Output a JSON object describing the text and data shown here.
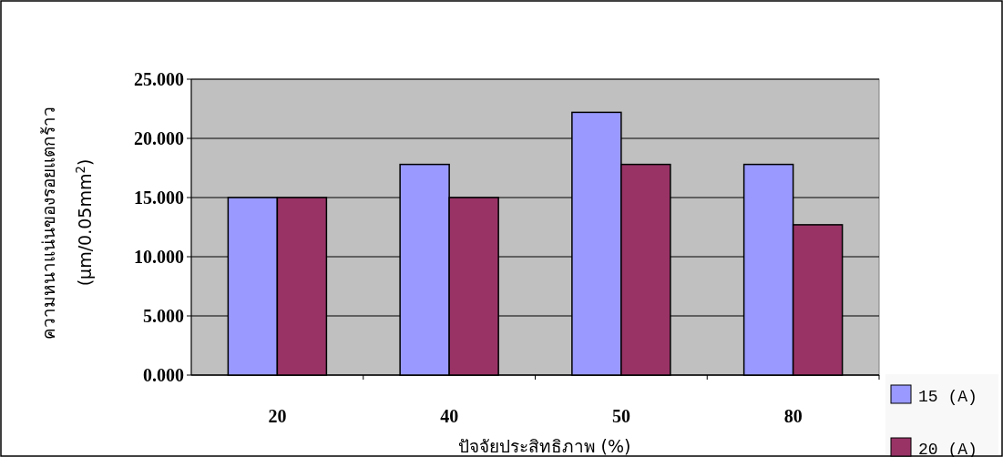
{
  "chart_data": {
    "type": "bar",
    "xlabel": "ปัจจัยประสิทธิภาพ (%)",
    "ylabel": "ความหนาแน่นของรอยแตกร้าว\n(µm/0.05mm$^{2}$)",
    "categories": [
      "20",
      "40",
      "50",
      "80"
    ],
    "series": [
      {
        "name": "15 (A)",
        "color": "#9999ff",
        "values": [
          15,
          17.8,
          22.2,
          17.8
        ]
      },
      {
        "name": "20 (A)",
        "color": "#993366",
        "values": [
          15,
          15,
          17.8,
          12.7
        ]
      }
    ],
    "ylim": [
      0,
      25
    ],
    "yticks": [
      {
        "value": 0,
        "label": "0.000"
      },
      {
        "value": 5,
        "label": "5.000"
      },
      {
        "value": 10,
        "label": "10.000"
      },
      {
        "value": 15,
        "label": "15.000"
      },
      {
        "value": 20,
        "label": "20.000"
      },
      {
        "value": 25,
        "label": "25.000"
      }
    ],
    "grid": "y",
    "legend": "bottom right"
  }
}
